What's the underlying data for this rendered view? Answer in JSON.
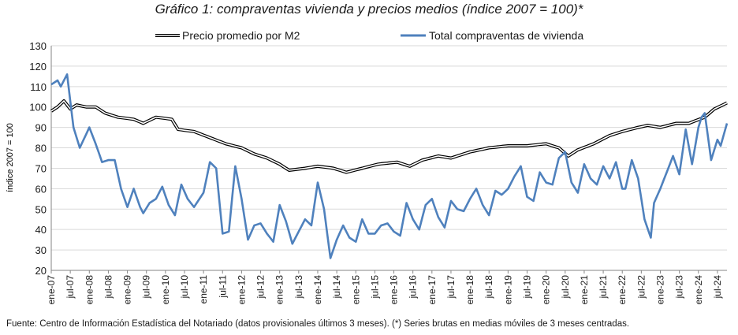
{
  "title": "Gráfico 1: compraventas vivienda y precios medios (índice 2007 = 100)*",
  "footer": "Fuente: Centro de Información Estadística del Notariado (datos provisionales últimos 3 meses). (*) Series brutas en medias móviles de 3 meses centradas.",
  "colors": {
    "precio": "#000000",
    "total": "#4f81bd",
    "grid": "#d9d9d9",
    "axis": "#868686"
  },
  "chart_data": {
    "type": "line",
    "ylabel": "índice 2007 = 100",
    "ylim": [
      20,
      130
    ],
    "yticks": [
      20,
      30,
      40,
      50,
      60,
      70,
      80,
      90,
      100,
      110,
      120,
      130
    ],
    "grid": "horizontal",
    "legend": "top",
    "x_start": "2007-01",
    "x_end": "2024-10",
    "x_tick_labels": [
      "ene-07",
      "jul-07",
      "ene-08",
      "jul-08",
      "ene-09",
      "jul-09",
      "ene-10",
      "jul-10",
      "ene-11",
      "jul-11",
      "ene-12",
      "jul-12",
      "ene-13",
      "jul-13",
      "ene-14",
      "jul-14",
      "ene-15",
      "jul-15",
      "ene-16",
      "jul-16",
      "ene-17",
      "jul-17",
      "ene-18",
      "jul-18",
      "ene-19",
      "jul-19",
      "ene-20",
      "jul-20",
      "ene-21",
      "jul-21",
      "ene-22",
      "jul-22",
      "ene-23",
      "jul-23",
      "ene-24",
      "jul-24"
    ],
    "series": [
      {
        "name": "Precio promedio por M2",
        "anchors": [
          [
            "2007-01",
            98
          ],
          [
            "2007-03",
            100
          ],
          [
            "2007-05",
            103
          ],
          [
            "2007-07",
            99
          ],
          [
            "2007-09",
            101
          ],
          [
            "2007-12",
            100
          ],
          [
            "2008-03",
            100
          ],
          [
            "2008-06",
            97
          ],
          [
            "2008-10",
            95
          ],
          [
            "2009-03",
            94
          ],
          [
            "2009-06",
            92
          ],
          [
            "2009-10",
            95
          ],
          [
            "2010-03",
            94
          ],
          [
            "2010-05",
            89
          ],
          [
            "2010-10",
            88
          ],
          [
            "2011-03",
            85
          ],
          [
            "2011-08",
            82
          ],
          [
            "2012-01",
            80
          ],
          [
            "2012-05",
            77
          ],
          [
            "2012-09",
            75
          ],
          [
            "2013-01",
            72
          ],
          [
            "2013-04",
            69
          ],
          [
            "2013-09",
            70
          ],
          [
            "2014-01",
            71
          ],
          [
            "2014-06",
            70
          ],
          [
            "2014-10",
            68
          ],
          [
            "2015-03",
            70
          ],
          [
            "2015-08",
            72
          ],
          [
            "2016-02",
            73
          ],
          [
            "2016-06",
            71
          ],
          [
            "2016-10",
            74
          ],
          [
            "2017-03",
            76
          ],
          [
            "2017-07",
            75
          ],
          [
            "2018-01",
            78
          ],
          [
            "2018-07",
            80
          ],
          [
            "2019-01",
            81
          ],
          [
            "2019-07",
            81
          ],
          [
            "2020-01",
            82
          ],
          [
            "2020-05",
            80
          ],
          [
            "2020-08",
            76
          ],
          [
            "2020-11",
            79
          ],
          [
            "2021-04",
            82
          ],
          [
            "2021-09",
            86
          ],
          [
            "2022-01",
            88
          ],
          [
            "2022-06",
            90
          ],
          [
            "2022-09",
            91
          ],
          [
            "2023-01",
            90
          ],
          [
            "2023-06",
            92
          ],
          [
            "2023-10",
            92
          ],
          [
            "2024-03",
            95
          ],
          [
            "2024-06",
            99
          ],
          [
            "2024-10",
            102
          ]
        ]
      },
      {
        "name": "Total compraventas de vivienda",
        "anchors": [
          [
            "2007-01",
            111
          ],
          [
            "2007-03",
            113
          ],
          [
            "2007-04",
            110
          ],
          [
            "2007-06",
            116
          ],
          [
            "2007-08",
            90
          ],
          [
            "2007-10",
            80
          ],
          [
            "2008-01",
            90
          ],
          [
            "2008-03",
            82
          ],
          [
            "2008-05",
            73
          ],
          [
            "2008-07",
            74
          ],
          [
            "2008-09",
            74
          ],
          [
            "2008-11",
            60
          ],
          [
            "2009-01",
            51
          ],
          [
            "2009-03",
            60
          ],
          [
            "2009-05",
            51
          ],
          [
            "2009-06",
            48
          ],
          [
            "2009-08",
            53
          ],
          [
            "2009-10",
            55
          ],
          [
            "2009-12",
            61
          ],
          [
            "2010-02",
            52
          ],
          [
            "2010-04",
            47
          ],
          [
            "2010-06",
            62
          ],
          [
            "2010-08",
            55
          ],
          [
            "2010-10",
            51
          ],
          [
            "2011-01",
            58
          ],
          [
            "2011-03",
            73
          ],
          [
            "2011-05",
            70
          ],
          [
            "2011-07",
            38
          ],
          [
            "2011-09",
            39
          ],
          [
            "2011-11",
            71
          ],
          [
            "2012-01",
            55
          ],
          [
            "2012-03",
            35
          ],
          [
            "2012-05",
            42
          ],
          [
            "2012-07",
            43
          ],
          [
            "2012-09",
            38
          ],
          [
            "2012-11",
            34
          ],
          [
            "2013-01",
            52
          ],
          [
            "2013-03",
            44
          ],
          [
            "2013-05",
            33
          ],
          [
            "2013-07",
            39
          ],
          [
            "2013-09",
            45
          ],
          [
            "2013-11",
            42
          ],
          [
            "2014-01",
            63
          ],
          [
            "2014-03",
            50
          ],
          [
            "2014-05",
            26
          ],
          [
            "2014-07",
            35
          ],
          [
            "2014-09",
            42
          ],
          [
            "2014-11",
            36
          ],
          [
            "2015-01",
            34
          ],
          [
            "2015-03",
            45
          ],
          [
            "2015-05",
            38
          ],
          [
            "2015-07",
            38
          ],
          [
            "2015-09",
            42
          ],
          [
            "2015-11",
            43
          ],
          [
            "2016-01",
            39
          ],
          [
            "2016-03",
            37
          ],
          [
            "2016-05",
            53
          ],
          [
            "2016-07",
            45
          ],
          [
            "2016-09",
            40
          ],
          [
            "2016-11",
            52
          ],
          [
            "2017-01",
            55
          ],
          [
            "2017-03",
            46
          ],
          [
            "2017-05",
            41
          ],
          [
            "2017-07",
            54
          ],
          [
            "2017-09",
            50
          ],
          [
            "2017-11",
            49
          ],
          [
            "2018-01",
            55
          ],
          [
            "2018-03",
            60
          ],
          [
            "2018-05",
            52
          ],
          [
            "2018-07",
            47
          ],
          [
            "2018-09",
            59
          ],
          [
            "2018-11",
            57
          ],
          [
            "2019-01",
            60
          ],
          [
            "2019-03",
            66
          ],
          [
            "2019-05",
            71
          ],
          [
            "2019-07",
            56
          ],
          [
            "2019-09",
            54
          ],
          [
            "2019-11",
            68
          ],
          [
            "2020-01",
            63
          ],
          [
            "2020-03",
            62
          ],
          [
            "2020-05",
            75
          ],
          [
            "2020-07",
            78
          ],
          [
            "2020-09",
            63
          ],
          [
            "2020-11",
            58
          ],
          [
            "2021-01",
            72
          ],
          [
            "2021-03",
            65
          ],
          [
            "2021-05",
            62
          ],
          [
            "2021-07",
            71
          ],
          [
            "2021-09",
            65
          ],
          [
            "2021-11",
            73
          ],
          [
            "2022-01",
            60
          ],
          [
            "2022-02",
            60
          ],
          [
            "2022-04",
            74
          ],
          [
            "2022-06",
            65
          ],
          [
            "2022-08",
            45
          ],
          [
            "2022-10",
            36
          ],
          [
            "2022-11",
            53
          ],
          [
            "2023-01",
            60
          ],
          [
            "2023-03",
            68
          ],
          [
            "2023-05",
            76
          ],
          [
            "2023-07",
            67
          ],
          [
            "2023-09",
            89
          ],
          [
            "2023-11",
            72
          ],
          [
            "2024-01",
            90
          ],
          [
            "2024-02",
            95
          ],
          [
            "2024-03",
            97
          ],
          [
            "2024-05",
            74
          ],
          [
            "2024-07",
            84
          ],
          [
            "2024-08",
            81
          ],
          [
            "2024-10",
            92
          ]
        ]
      }
    ]
  }
}
